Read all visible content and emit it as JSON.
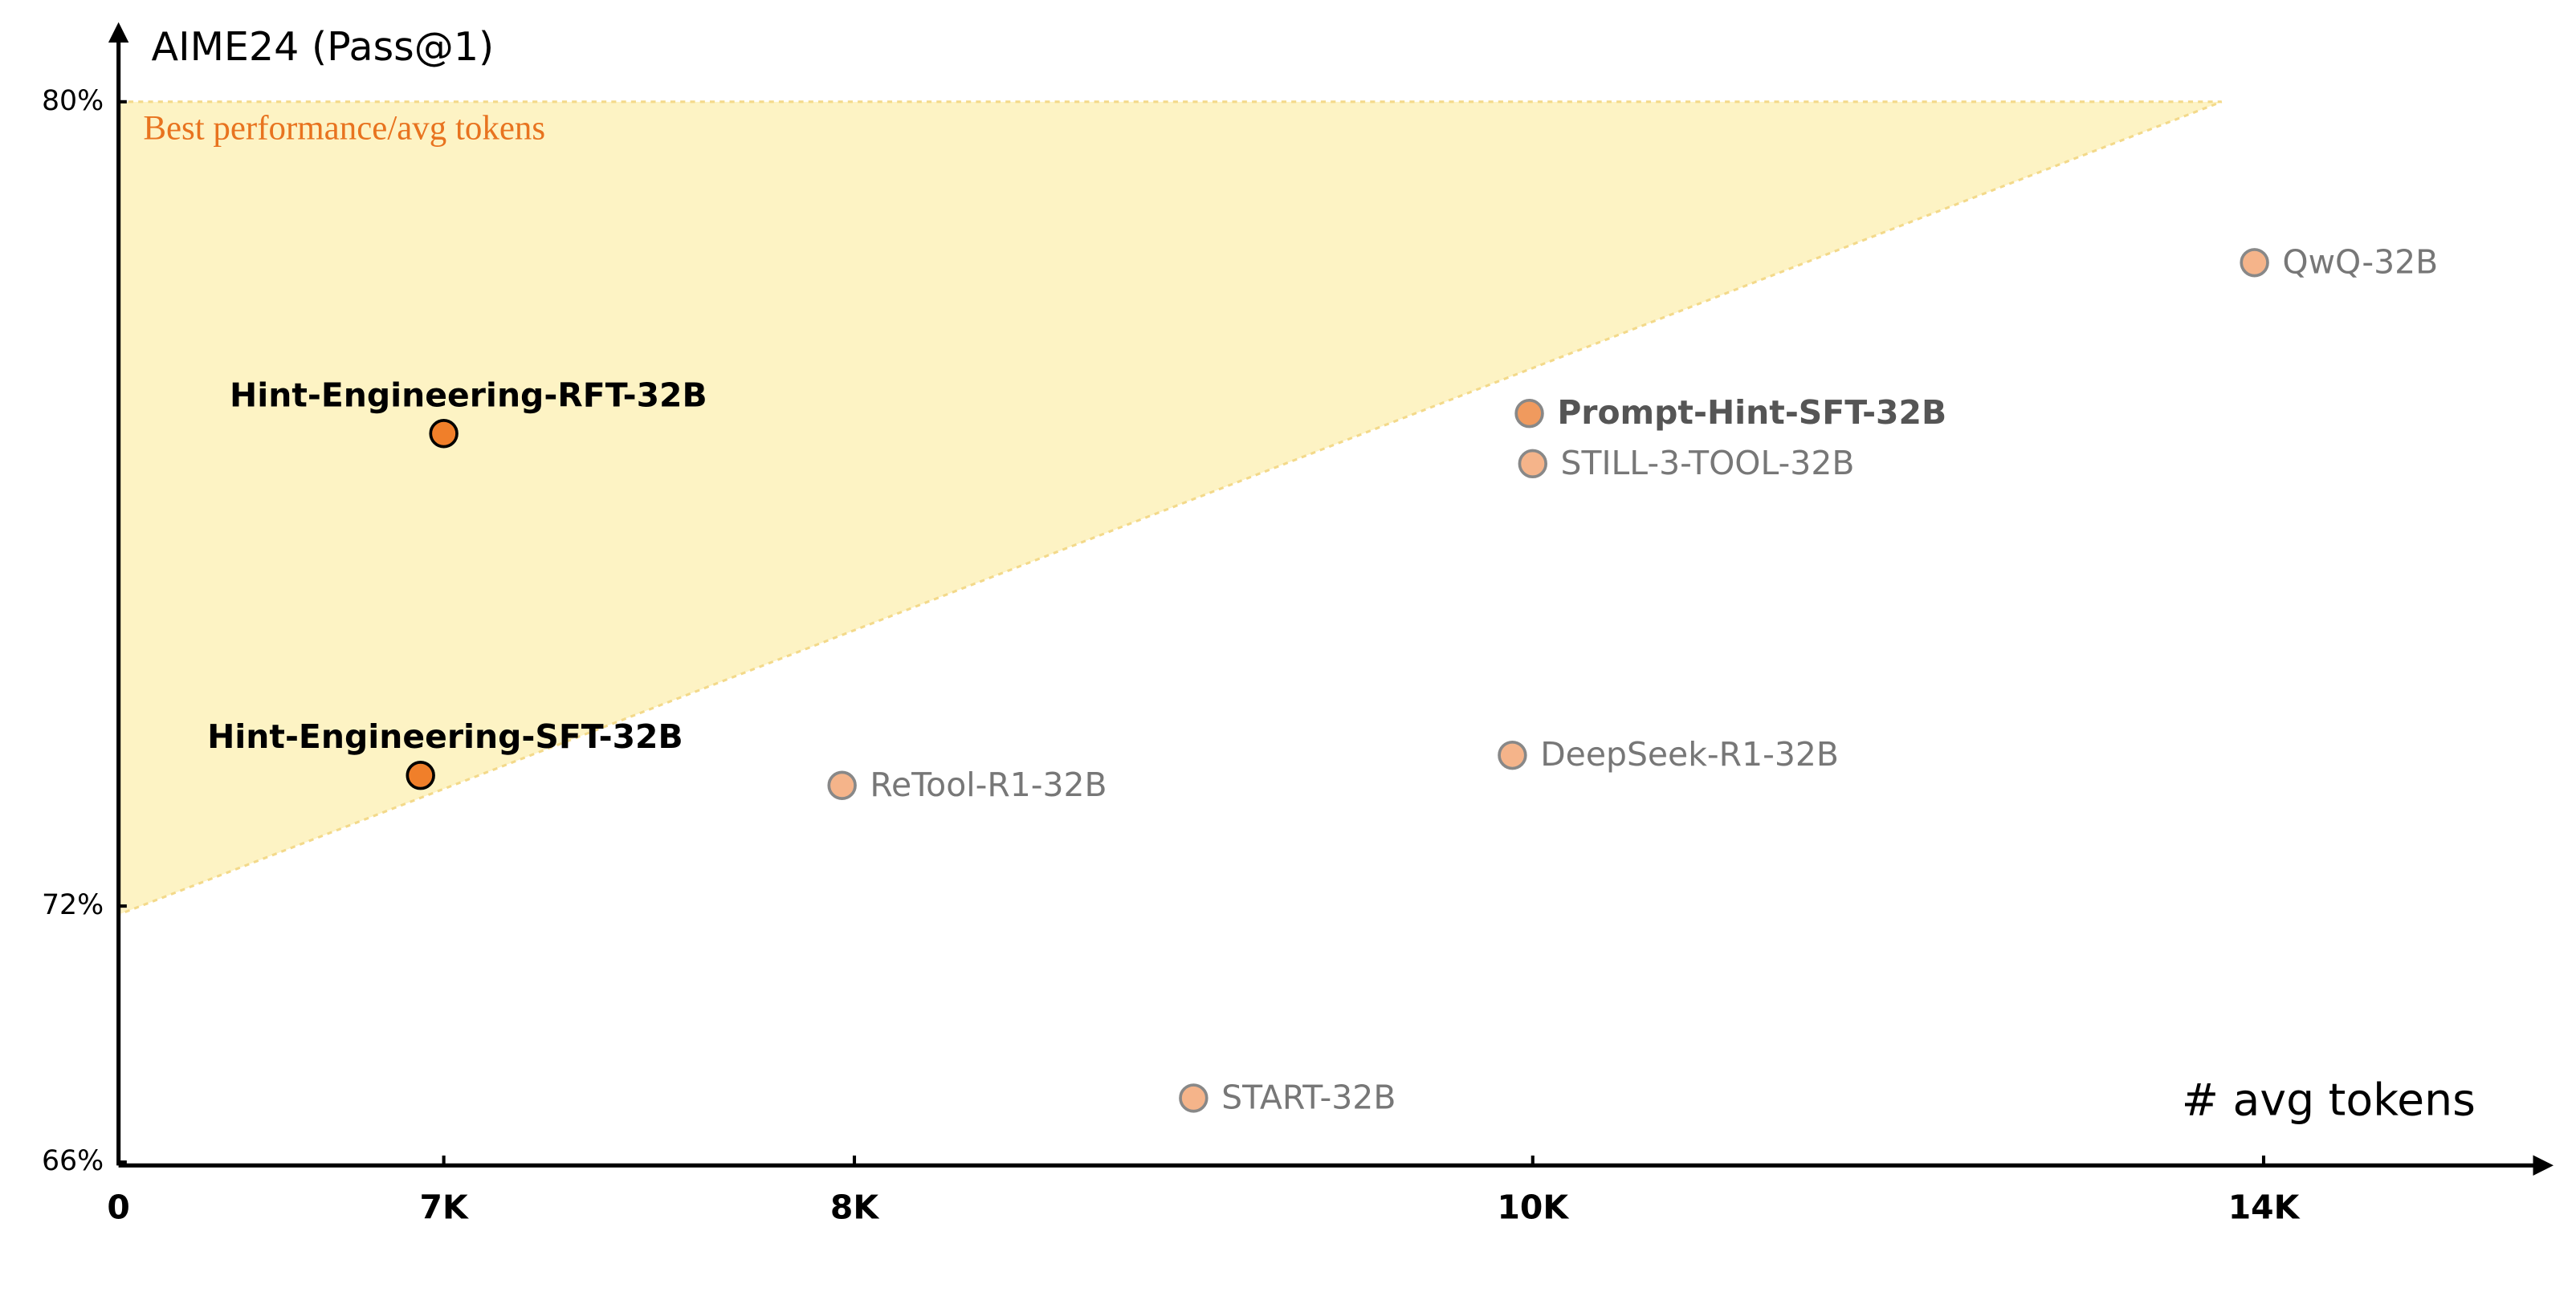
{
  "chart_data": {
    "type": "scatter",
    "y_label": "AIME24 (Pass@1)",
    "x_label": "# avg tokens",
    "xlim": [
      0,
      15000
    ],
    "ylim": [
      66,
      80
    ],
    "xticks": [
      0,
      {
        "value": 7000,
        "label": "7K"
      },
      {
        "value": 8000,
        "label": "8K"
      },
      {
        "value": 10000,
        "label": "10K"
      },
      {
        "value": 14000,
        "label": "14K"
      }
    ],
    "yticks": [
      {
        "value": 66,
        "label": "66%"
      },
      {
        "value": 72,
        "label": "72%"
      },
      {
        "value": 80,
        "label": "80%"
      }
    ],
    "region": {
      "label": "Best performance/avg tokens",
      "color": "#fdf3c4",
      "label_color": "#e8731f",
      "x": [
        0,
        13770,
        0
      ],
      "y": [
        80,
        80,
        71.8
      ]
    },
    "points": [
      {
        "label": "Hint-Engineering-RFT-32B",
        "x": 7000,
        "y": 76.7,
        "color": "#f07f2a",
        "label_color": "#000000",
        "bold": true,
        "label_position": "above"
      },
      {
        "label": "Hint-Engineering-SFT-32B",
        "x": 6500,
        "y": 73.3,
        "color": "#f07f2a",
        "label_color": "#000000",
        "bold": true,
        "label_position": "above"
      },
      {
        "label": "ReTool-R1-32B",
        "x": 7970,
        "y": 73.2,
        "color": "#f5b48a",
        "label_color": "#777777",
        "bold": false,
        "label_position": "right"
      },
      {
        "label": "START-32B",
        "x": 9000,
        "y": 67.5,
        "color": "#f5b48a",
        "label_color": "#777777",
        "bold": false,
        "label_position": "right"
      },
      {
        "label": "DeepSeek-R1-32B",
        "x": 9940,
        "y": 73.5,
        "color": "#f5b48a",
        "label_color": "#777777",
        "bold": false,
        "label_position": "right"
      },
      {
        "label": "STILL-3-TOOL-32B",
        "x": 10000,
        "y": 76.4,
        "color": "#f5b48a",
        "label_color": "#777777",
        "bold": false,
        "label_position": "right"
      },
      {
        "label": "Prompt-Hint-SFT-32B",
        "x": 9990,
        "y": 76.9,
        "color": "#f09a5e",
        "label_color": "#555555",
        "bold": true,
        "label_position": "right"
      },
      {
        "label": "QwQ-32B",
        "x": 13950,
        "y": 78.4,
        "color": "#f5b48a",
        "label_color": "#777777",
        "bold": false,
        "label_position": "right"
      }
    ]
  }
}
